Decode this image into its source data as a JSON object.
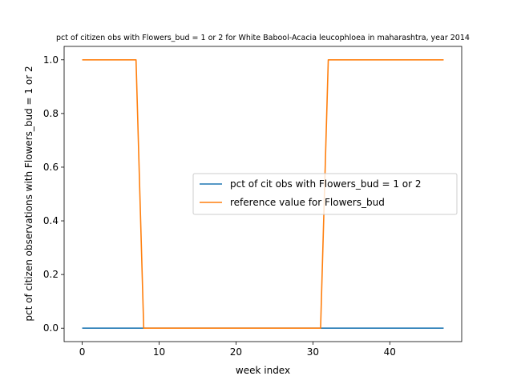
{
  "chart_data": {
    "type": "line",
    "title": "pct of citizen obs with Flowers_bud = 1 or 2 for White Babool-Acacia leucophloea in maharashtra, year 2014",
    "xlabel": "week index",
    "ylabel": "pct of citizen observations with Flowers_bud = 1 or 2",
    "xlim": [
      -2.35,
      49.35
    ],
    "ylim": [
      -0.05,
      1.05
    ],
    "xticks": [
      0,
      10,
      20,
      30,
      40
    ],
    "xtick_labels": [
      "0",
      "10",
      "20",
      "30",
      "40"
    ],
    "yticks": [
      0.0,
      0.2,
      0.4,
      0.6,
      0.8,
      1.0
    ],
    "ytick_labels": [
      "0.0",
      "0.2",
      "0.4",
      "0.6",
      "0.8",
      "1.0"
    ],
    "grid": false,
    "legend_position": "center-right",
    "x": [
      0,
      1,
      2,
      3,
      4,
      5,
      6,
      7,
      8,
      9,
      10,
      11,
      12,
      13,
      14,
      15,
      16,
      17,
      18,
      19,
      20,
      21,
      22,
      23,
      24,
      25,
      26,
      27,
      28,
      29,
      30,
      31,
      32,
      33,
      34,
      35,
      36,
      37,
      38,
      39,
      40,
      41,
      42,
      43,
      44,
      45,
      46,
      47
    ],
    "series": [
      {
        "name": "pct of cit obs with Flowers_bud = 1 or 2",
        "color": "#1f77b4",
        "values": [
          0,
          0,
          0,
          0,
          0,
          0,
          0,
          0,
          0,
          0,
          0,
          0,
          0,
          0,
          0,
          0,
          0,
          0,
          0,
          0,
          0,
          0,
          0,
          0,
          0,
          0,
          0,
          0,
          0,
          0,
          0,
          0,
          0,
          0,
          0,
          0,
          0,
          0,
          0,
          0,
          0,
          0,
          0,
          0,
          0,
          0,
          0,
          0
        ]
      },
      {
        "name": "reference value for Flowers_bud",
        "color": "#ff7f0e",
        "values": [
          1,
          1,
          1,
          1,
          1,
          1,
          1,
          1,
          0,
          0,
          0,
          0,
          0,
          0,
          0,
          0,
          0,
          0,
          0,
          0,
          0,
          0,
          0,
          0,
          0,
          0,
          0,
          0,
          0,
          0,
          0,
          0,
          1,
          1,
          1,
          1,
          1,
          1,
          1,
          1,
          1,
          1,
          1,
          1,
          1,
          1,
          1,
          1
        ]
      }
    ]
  }
}
